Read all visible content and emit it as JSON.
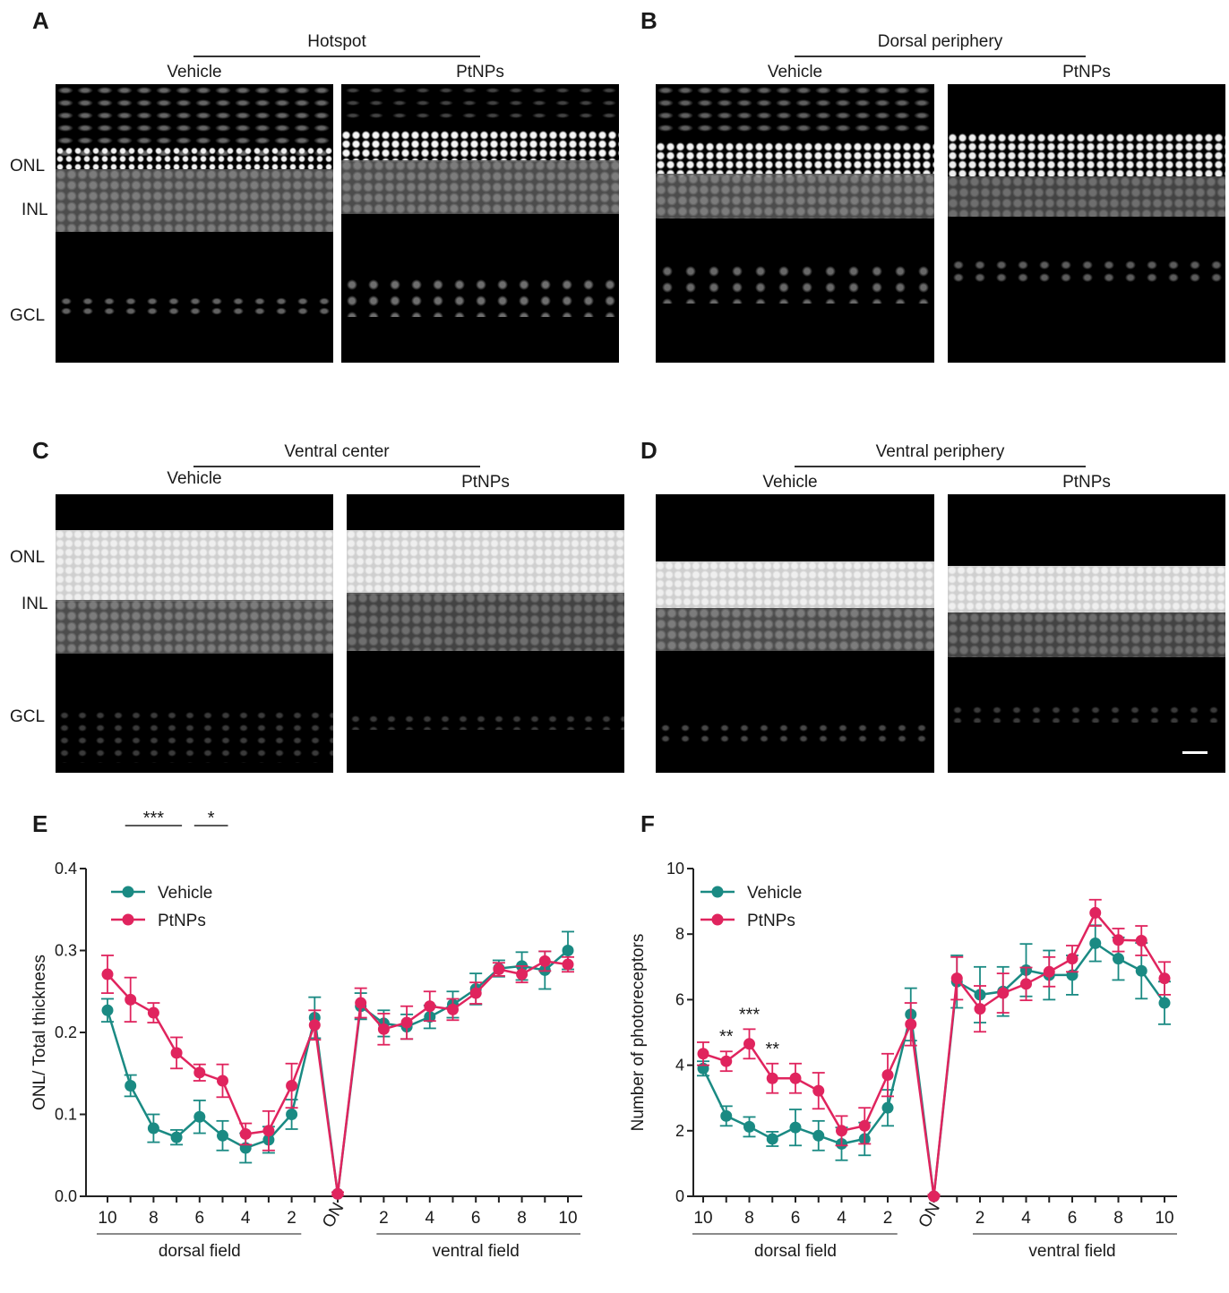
{
  "colors": {
    "vehicle": "#1a8a83",
    "ptnps": "#e0245e"
  },
  "panels": {
    "A": {
      "letter": "A",
      "region": "Hotspot",
      "left": "Vehicle",
      "right": "PtNPs"
    },
    "B": {
      "letter": "B",
      "region": "Dorsal periphery",
      "left": "Vehicle",
      "right": "PtNPs"
    },
    "C": {
      "letter": "C",
      "region": "Ventral center",
      "left": "Vehicle",
      "right": "PtNPs"
    },
    "D": {
      "letter": "D",
      "region": "Ventral periphery",
      "left": "Vehicle",
      "right": "PtNPs"
    }
  },
  "layer_labels": {
    "onl": "ONL",
    "inl": "INL",
    "gcl": "GCL"
  },
  "chart_data": [
    {
      "type": "line",
      "panel": "E",
      "ylabel": "ONL/ Total thickness",
      "ylim": [
        0,
        0.4
      ],
      "yticks": [
        "0.0",
        "0.1",
        "0.2",
        "0.3",
        "0.4"
      ],
      "x_tick_labels": [
        "10",
        "8",
        "6",
        "4",
        "2",
        "ON",
        "2",
        "4",
        "6",
        "8",
        "10"
      ],
      "field_labels": [
        "dorsal field",
        "ventral field"
      ],
      "positions": [
        -10,
        -9,
        -8,
        -7,
        -6,
        -5,
        -4,
        -3,
        -2,
        -1,
        0,
        1,
        2,
        3,
        4,
        5,
        6,
        7,
        8,
        9,
        10
      ],
      "legend_position": "top-left",
      "series": [
        {
          "name": "Vehicle",
          "values": [
            0.227,
            0.135,
            0.083,
            0.072,
            0.097,
            0.074,
            0.059,
            0.069,
            0.1,
            0.218,
            0.003,
            0.232,
            0.211,
            0.207,
            0.219,
            0.234,
            0.253,
            0.278,
            0.281,
            0.276,
            0.3
          ],
          "errors": [
            0.014,
            0.013,
            0.017,
            0.009,
            0.02,
            0.018,
            0.018,
            0.016,
            0.018,
            0.025,
            0.002,
            0.016,
            0.016,
            0.015,
            0.014,
            0.016,
            0.019,
            0.01,
            0.017,
            0.023,
            0.023
          ]
        },
        {
          "name": "PtNPs",
          "values": [
            0.271,
            0.24,
            0.224,
            0.175,
            0.151,
            0.141,
            0.076,
            0.08,
            0.135,
            0.209,
            0.003,
            0.236,
            0.204,
            0.212,
            0.232,
            0.228,
            0.248,
            0.277,
            0.271,
            0.287,
            0.283
          ],
          "errors": [
            0.023,
            0.027,
            0.012,
            0.019,
            0.01,
            0.02,
            0.013,
            0.024,
            0.027,
            0.018,
            0.002,
            0.018,
            0.019,
            0.02,
            0.018,
            0.013,
            0.013,
            0.008,
            0.01,
            0.012,
            0.009
          ]
        }
      ],
      "significance": [
        {
          "label": "***",
          "from": -9,
          "to": -7
        },
        {
          "label": "*",
          "from": -6,
          "to": -5
        }
      ]
    },
    {
      "type": "line",
      "panel": "F",
      "ylabel": "Number of photoreceptors",
      "ylim": [
        0,
        10
      ],
      "yticks": [
        "0",
        "2",
        "4",
        "6",
        "8",
        "10"
      ],
      "x_tick_labels": [
        "10",
        "8",
        "6",
        "4",
        "2",
        "ON",
        "2",
        "4",
        "6",
        "8",
        "10"
      ],
      "field_labels": [
        "dorsal field",
        "ventral field"
      ],
      "positions": [
        -10,
        -9,
        -8,
        -7,
        -6,
        -5,
        -4,
        -3,
        -2,
        -1,
        0,
        1,
        2,
        3,
        4,
        5,
        6,
        7,
        8,
        9,
        10
      ],
      "legend_position": "top-left",
      "series": [
        {
          "name": "Vehicle",
          "values": [
            3.9,
            2.45,
            2.12,
            1.75,
            2.1,
            1.85,
            1.6,
            1.75,
            2.7,
            5.55,
            0,
            6.55,
            6.15,
            6.25,
            6.9,
            6.75,
            6.75,
            7.72,
            7.25,
            6.88,
            5.9
          ],
          "errors": [
            0.22,
            0.3,
            0.3,
            0.22,
            0.55,
            0.45,
            0.5,
            0.5,
            0.55,
            0.8,
            0.05,
            0.8,
            0.85,
            0.75,
            0.8,
            0.75,
            0.6,
            0.55,
            0.65,
            0.85,
            0.65
          ]
        },
        {
          "name": "PtNPs",
          "values": [
            4.35,
            4.12,
            4.65,
            3.6,
            3.6,
            3.22,
            2.0,
            2.15,
            3.7,
            5.25,
            0,
            6.65,
            5.72,
            6.2,
            6.48,
            6.85,
            7.25,
            8.65,
            7.82,
            7.8,
            6.65
          ],
          "errors": [
            0.35,
            0.3,
            0.45,
            0.45,
            0.45,
            0.55,
            0.45,
            0.55,
            0.65,
            0.65,
            0.05,
            0.65,
            0.7,
            0.6,
            0.5,
            0.45,
            0.4,
            0.4,
            0.35,
            0.45,
            0.5
          ]
        }
      ],
      "significance": [
        {
          "label": "**",
          "at": -9
        },
        {
          "label": "***",
          "at": -8
        },
        {
          "label": "**",
          "at": -7
        }
      ]
    }
  ]
}
